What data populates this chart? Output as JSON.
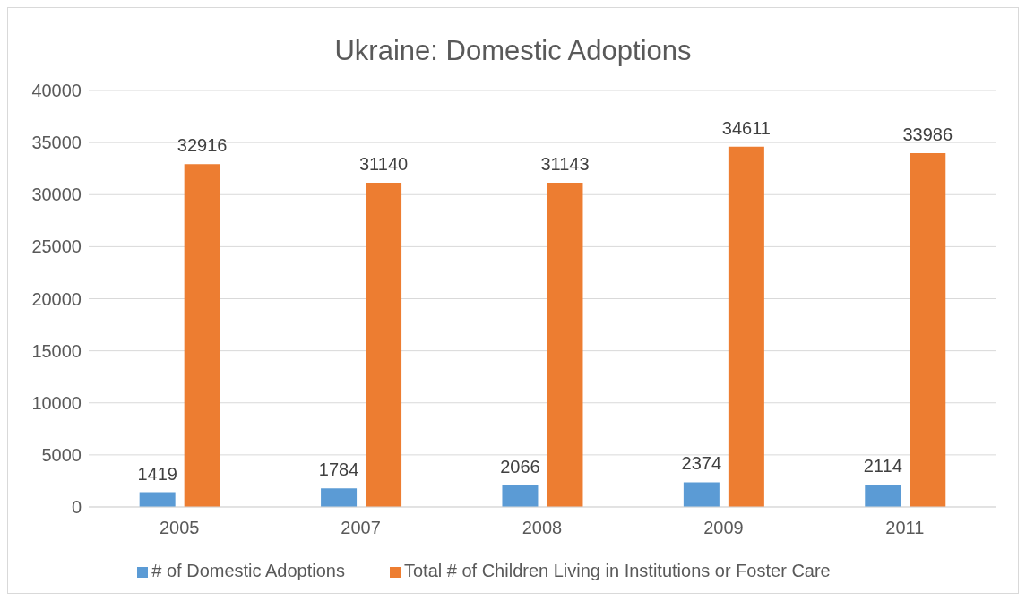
{
  "chart_data": {
    "type": "bar",
    "title": "Ukraine:  Domestic Adoptions",
    "categories": [
      "2005",
      "2007",
      "2008",
      "2009",
      "2011"
    ],
    "series": [
      {
        "name": "# of Domestic Adoptions",
        "color": "#5b9bd5",
        "values": [
          1419,
          1784,
          2066,
          2374,
          2114
        ]
      },
      {
        "name": "Total # of Children Living in Institutions or Foster Care",
        "color": "#ed7d31",
        "values": [
          32916,
          31140,
          31143,
          34611,
          33986
        ]
      }
    ],
    "ylim": [
      0,
      40000
    ],
    "yticks": [
      0,
      5000,
      10000,
      15000,
      20000,
      25000,
      30000,
      35000,
      40000
    ],
    "grid": "y",
    "legend": "bottom",
    "data_labels": true
  }
}
